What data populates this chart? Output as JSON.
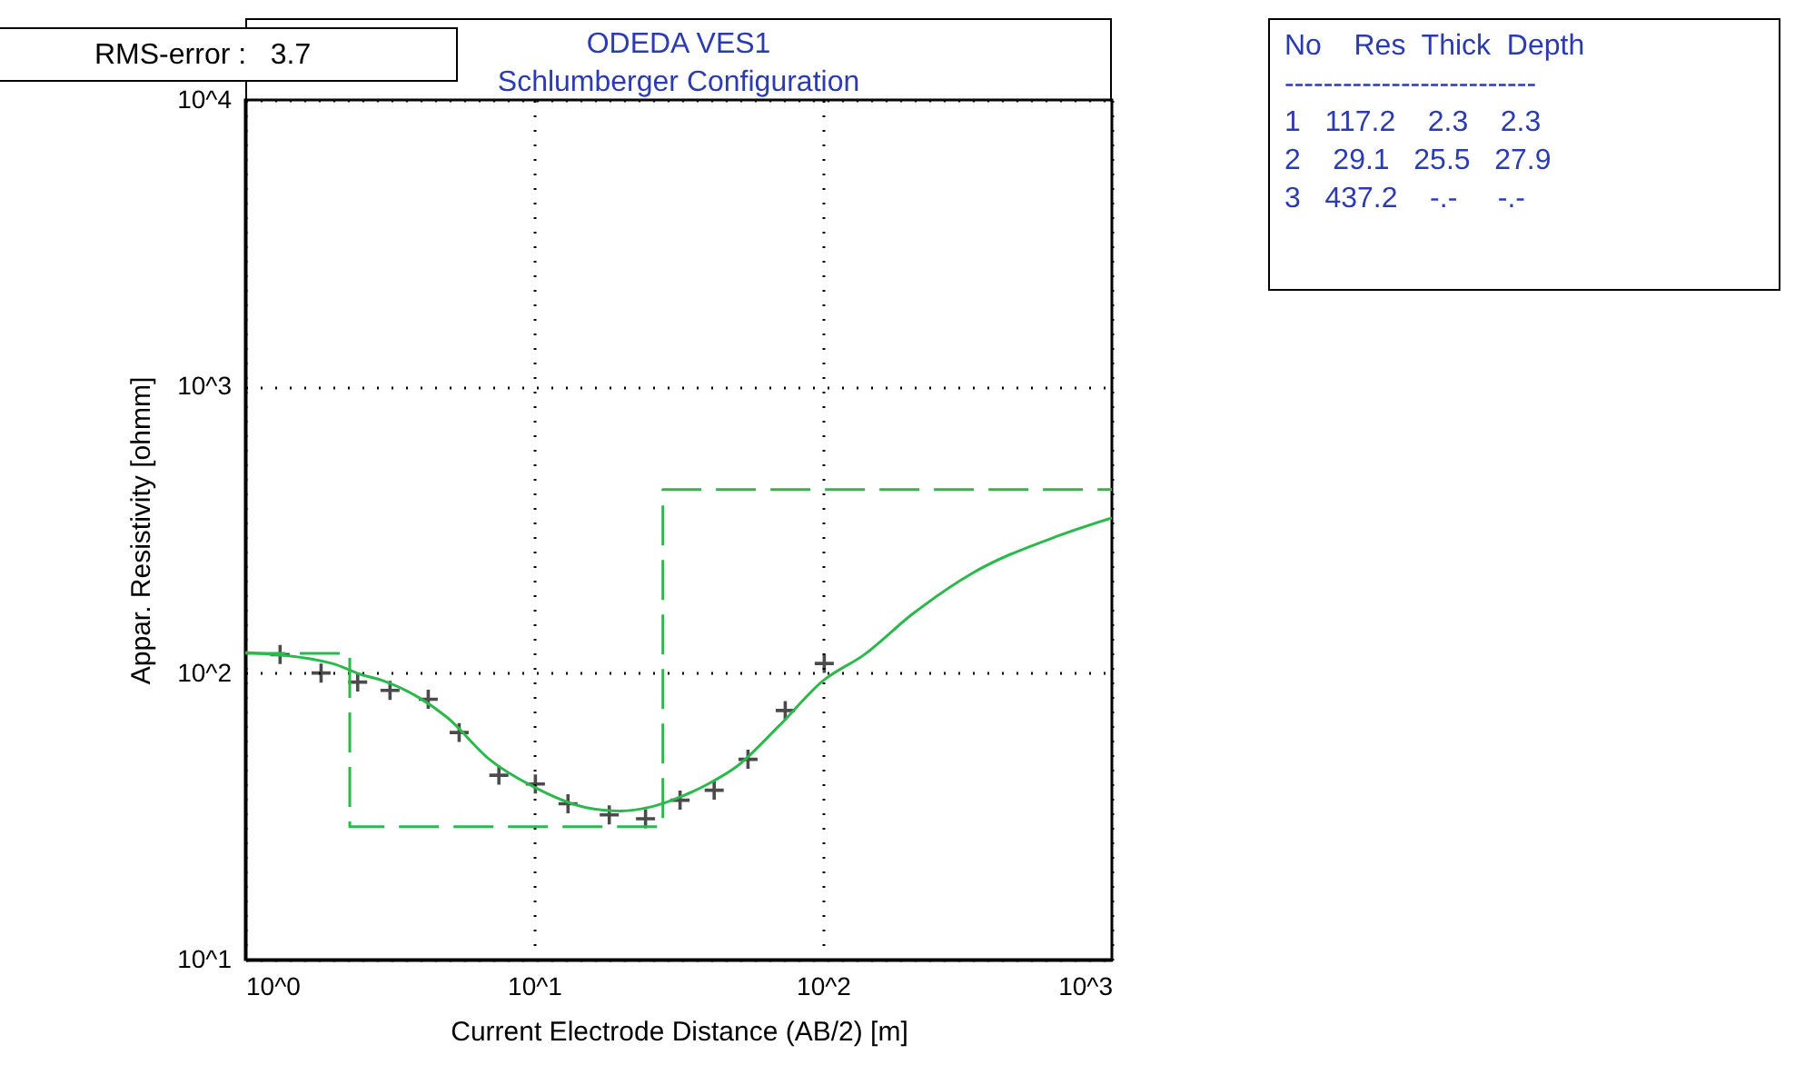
{
  "chart_data": {
    "type": "line",
    "title": "ODEDA VES1",
    "subtitle": "Schlumberger Configuration",
    "xlabel": "Current Electrode Distance (AB/2) [m]",
    "ylabel": "Appar. Resistivity [ohmm]",
    "log": "xy",
    "grid": true,
    "xlim": [
      1,
      1000
    ],
    "ylim": [
      10,
      10000
    ],
    "xticks": [
      {
        "value": 1,
        "label": "10^0"
      },
      {
        "value": 10,
        "label": "10^1"
      },
      {
        "value": 100,
        "label": "10^2"
      },
      {
        "value": 1000,
        "label": "10^3"
      }
    ],
    "yticks": [
      {
        "value": 10,
        "label": "10^1"
      },
      {
        "value": 100,
        "label": "10^2"
      },
      {
        "value": 1000,
        "label": "10^3"
      },
      {
        "value": 10000,
        "label": "10^4"
      }
    ],
    "series": [
      {
        "type": "scatter",
        "marker": "cross",
        "color": "#000000",
        "x": [
          1.32,
          1.83,
          2.45,
          3.17,
          4.3,
          5.5,
          7.55,
          10.1,
          13.1,
          18.2,
          24.3,
          32,
          42,
          55,
          74,
          101
        ],
        "values": [
          116,
          100,
          93,
          87,
          81,
          62,
          44,
          41,
          35,
          32,
          31,
          36,
          39,
          50,
          74,
          108
        ]
      },
      {
        "line_style": "solid",
        "color": "#2db84d",
        "x": [
          1,
          2,
          2.5,
          3,
          4,
          5,
          7,
          10,
          15,
          20,
          25,
          30,
          40,
          50,
          70,
          100,
          139,
          203,
          331,
          645,
          1000
        ],
        "values": [
          118,
          108,
          99,
          94,
          82,
          70,
          50,
          40,
          34,
          33,
          34,
          36,
          41,
          47,
          65,
          94,
          116,
          160,
          224,
          300,
          348
        ]
      },
      {
        "type": "step",
        "line_style": "dashed",
        "color": "#2db84d",
        "x": [
          1,
          2.3,
          27.9,
          1000
        ],
        "values": [
          117.2,
          29.1,
          437.2,
          437.2
        ]
      }
    ],
    "annotations": [
      "RMS-error :   3.7",
      "No    Res  Thick  Depth",
      "--------------------------",
      "1   117.2    2.3    2.3",
      "2    29.1   25.5   27.9",
      "3   437.2    -.-     -.-"
    ]
  }
}
